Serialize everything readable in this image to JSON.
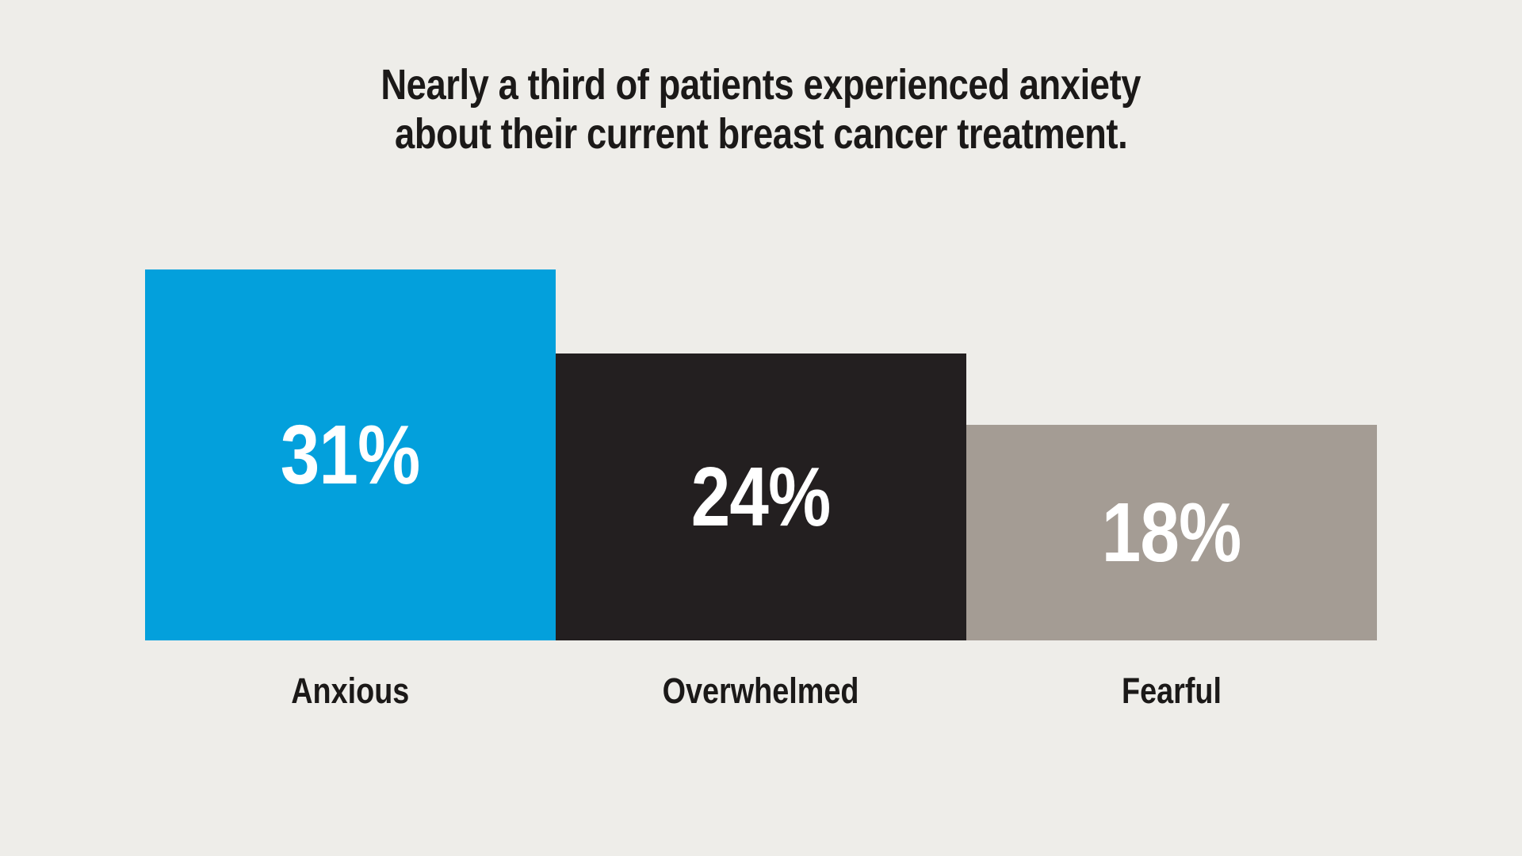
{
  "chart_data": {
    "type": "bar",
    "title": "Nearly a third of patients experienced anxiety about their current breast cancer treatment.",
    "title_lines": [
      "Nearly a third of patients experienced anxiety",
      "about their current breast cancer treatment."
    ],
    "categories": [
      "Anxious",
      "Overwhelmed",
      "Fearful"
    ],
    "values": [
      31,
      24,
      18
    ],
    "value_labels": [
      "31%",
      "24%",
      "18%"
    ],
    "unit": "percent",
    "orientation": "vertical",
    "bars_bottom_aligned": true,
    "axes_visible": false,
    "grid": false,
    "legend": false,
    "ylim": [
      0,
      31
    ],
    "bar_colors": [
      "#03A0DC",
      "#231F20",
      "#A49C94"
    ],
    "value_label_color": "#FFFFFF",
    "category_label_color": "#1B1918",
    "title_color": "#1B1918",
    "background_color": "#EEEDE9"
  }
}
